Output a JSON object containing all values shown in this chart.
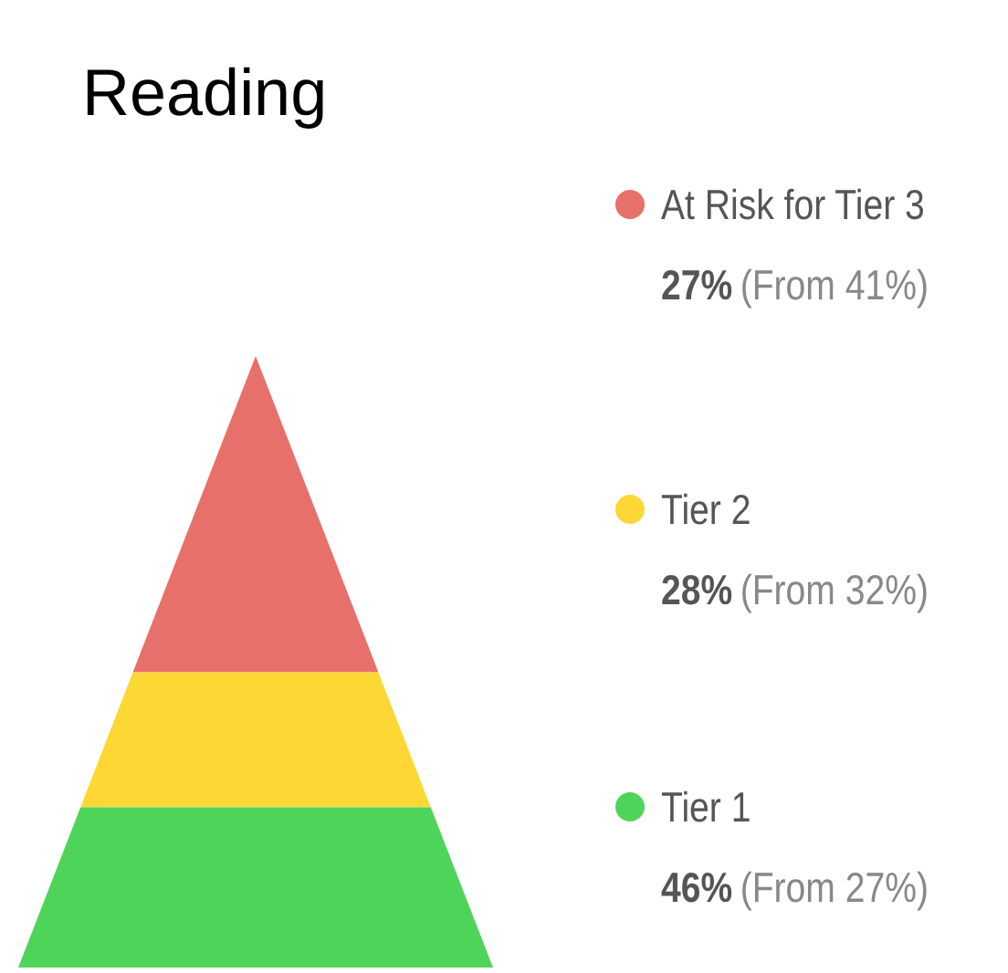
{
  "chart_data": {
    "type": "other",
    "title": "Reading",
    "categories": [
      "At Risk for Tier 3",
      "Tier 2",
      "Tier 1"
    ],
    "values": [
      27,
      28,
      46
    ],
    "value_labels": [
      "27%",
      "28%",
      "46%"
    ],
    "colors": [
      "#e8706a",
      "#fdd835",
      "#4fd45a"
    ],
    "annotations": [
      "(From 41%)",
      "(From 32%)",
      "(From 27%)"
    ]
  }
}
